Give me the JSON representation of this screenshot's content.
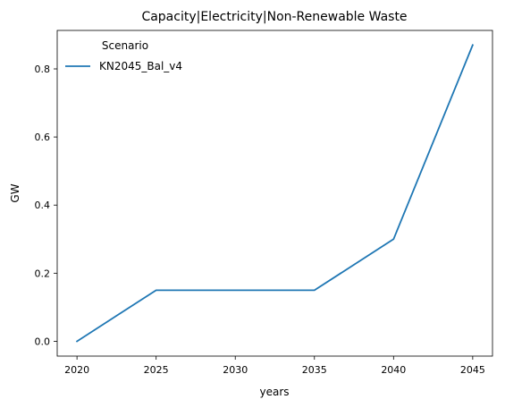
{
  "chart_data": {
    "type": "line",
    "title": "Capacity|Electricity|Non-Renewable Waste",
    "xlabel": "years",
    "ylabel": "GW",
    "x": [
      2020,
      2025,
      2030,
      2035,
      2040,
      2045
    ],
    "xticks": [
      "2020",
      "2025",
      "2030",
      "2035",
      "2040",
      "2045"
    ],
    "yticks": [
      "0.0",
      "0.2",
      "0.4",
      "0.6",
      "0.8"
    ],
    "xlim": [
      2018.75,
      2046.25
    ],
    "ylim": [
      -0.0435,
      0.913
    ],
    "grid": false,
    "legend": {
      "title": "Scenario",
      "placement": "top-left"
    },
    "series": [
      {
        "name": "KN2045_Bal_v4",
        "color": "#1f77b4",
        "values": [
          0.0,
          0.15,
          0.15,
          0.15,
          0.3,
          0.87
        ]
      }
    ]
  }
}
